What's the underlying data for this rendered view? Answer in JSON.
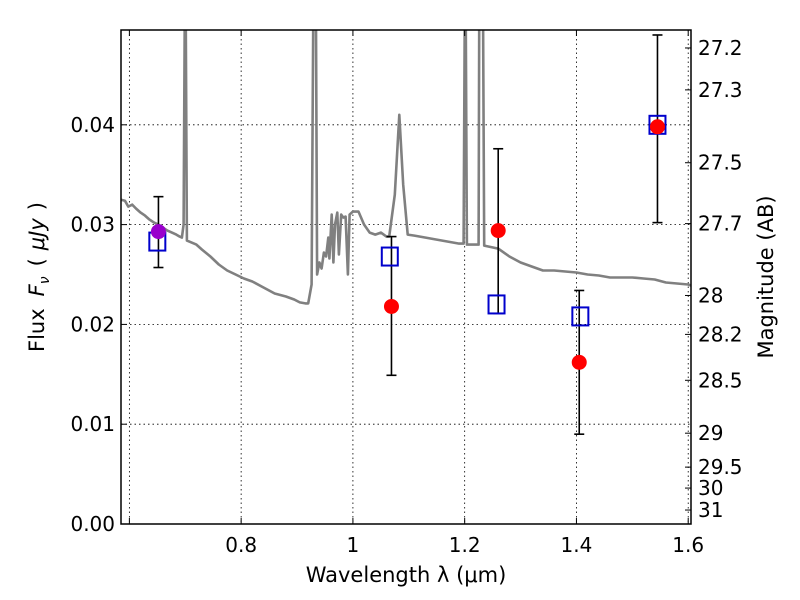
{
  "chart_data": {
    "type": "scatter",
    "title": "",
    "xlabel": "Wavelength  λ (μm)",
    "ylabel": "Flux  F_ν  ( μJy )",
    "ylabel_parts": {
      "main": "Flux",
      "symbol": "F",
      "sub": "ν",
      "unit_open": "(",
      "unit": "μJy",
      "unit_close": ")"
    },
    "y2label": "Magnitude (AB)",
    "xlim": [
      0.585,
      1.605
    ],
    "ylim": [
      0.0,
      0.0495
    ],
    "grid": true,
    "x_ticks": [
      0.6,
      0.8,
      1.0,
      1.2,
      1.4,
      1.6
    ],
    "x_tick_labels": [
      "",
      "0.8",
      "1",
      "1.2",
      "1.4",
      "1.6"
    ],
    "y_ticks": [
      0.0,
      0.01,
      0.02,
      0.03,
      0.04
    ],
    "y_tick_labels": [
      "0.00",
      "0.01",
      "0.02",
      "0.03",
      "0.04"
    ],
    "y2_ticks": [
      {
        "label": "27.2",
        "flux": 0.0477
      },
      {
        "label": "27.3",
        "flux": 0.0435
      },
      {
        "label": "27.5",
        "flux": 0.0362
      },
      {
        "label": "27.7",
        "flux": 0.0301
      },
      {
        "label": "28",
        "flux": 0.0229
      },
      {
        "label": "28.2",
        "flux": 0.019
      },
      {
        "label": "28.5",
        "flux": 0.0144
      },
      {
        "label": "29",
        "flux": 0.0091
      },
      {
        "label": "29.5",
        "flux": 0.0057
      },
      {
        "label": "30",
        "flux": 0.0036
      },
      {
        "label": "31",
        "flux": 0.0014
      }
    ],
    "model_sed": {
      "color": "#808080",
      "points": [
        [
          0.585,
          0.0325
        ],
        [
          0.592,
          0.0324
        ],
        [
          0.598,
          0.0318
        ],
        [
          0.605,
          0.032
        ],
        [
          0.612,
          0.0316
        ],
        [
          0.62,
          0.0312
        ],
        [
          0.628,
          0.0309
        ],
        [
          0.636,
          0.0305
        ],
        [
          0.644,
          0.0302
        ],
        [
          0.652,
          0.03
        ],
        [
          0.66,
          0.0297
        ],
        [
          0.668,
          0.0294
        ],
        [
          0.676,
          0.0292
        ],
        [
          0.684,
          0.029
        ],
        [
          0.69,
          0.0288
        ],
        [
          0.694,
          0.0287
        ],
        [
          0.697,
          0.03
        ],
        [
          0.699,
          0.05
        ],
        [
          0.701,
          0.05
        ],
        [
          0.703,
          0.0284
        ],
        [
          0.72,
          0.028
        ],
        [
          0.73,
          0.0275
        ],
        [
          0.745,
          0.0268
        ],
        [
          0.76,
          0.026
        ],
        [
          0.775,
          0.0254
        ],
        [
          0.79,
          0.025
        ],
        [
          0.805,
          0.0246
        ],
        [
          0.82,
          0.0243
        ],
        [
          0.84,
          0.0237
        ],
        [
          0.86,
          0.0231
        ],
        [
          0.88,
          0.0228
        ],
        [
          0.895,
          0.0225
        ],
        [
          0.905,
          0.0222
        ],
        [
          0.915,
          0.0221
        ],
        [
          0.92,
          0.0221
        ],
        [
          0.926,
          0.024
        ],
        [
          0.929,
          0.05
        ],
        [
          0.934,
          0.05
        ],
        [
          0.936,
          0.025
        ],
        [
          0.94,
          0.0262
        ],
        [
          0.944,
          0.0256
        ],
        [
          0.948,
          0.0272
        ],
        [
          0.952,
          0.0268
        ],
        [
          0.956,
          0.0287
        ],
        [
          0.958,
          0.0266
        ],
        [
          0.962,
          0.031
        ],
        [
          0.965,
          0.0262
        ],
        [
          0.968,
          0.03
        ],
        [
          0.972,
          0.0312
        ],
        [
          0.975,
          0.027
        ],
        [
          0.979,
          0.031
        ],
        [
          0.983,
          0.0307
        ],
        [
          0.987,
          0.0308
        ],
        [
          0.991,
          0.025
        ],
        [
          0.994,
          0.031
        ],
        [
          1.0,
          0.0313
        ],
        [
          1.01,
          0.0313
        ],
        [
          1.02,
          0.03
        ],
        [
          1.03,
          0.0292
        ],
        [
          1.04,
          0.029
        ],
        [
          1.05,
          0.0292
        ],
        [
          1.06,
          0.0288
        ],
        [
          1.065,
          0.0288
        ],
        [
          1.075,
          0.033
        ],
        [
          1.083,
          0.041
        ],
        [
          1.09,
          0.034
        ],
        [
          1.098,
          0.029
        ],
        [
          1.11,
          0.0289
        ],
        [
          1.13,
          0.0287
        ],
        [
          1.15,
          0.0285
        ],
        [
          1.17,
          0.0283
        ],
        [
          1.19,
          0.0281
        ],
        [
          1.198,
          0.0281
        ],
        [
          1.2,
          0.05
        ],
        [
          1.202,
          0.05
        ],
        [
          1.204,
          0.028
        ],
        [
          1.225,
          0.028
        ],
        [
          1.226,
          0.05
        ],
        [
          1.233,
          0.05
        ],
        [
          1.235,
          0.0279
        ],
        [
          1.26,
          0.0276
        ],
        [
          1.28,
          0.0268
        ],
        [
          1.3,
          0.0262
        ],
        [
          1.32,
          0.0258
        ],
        [
          1.34,
          0.0254
        ],
        [
          1.36,
          0.0254
        ],
        [
          1.38,
          0.0253
        ],
        [
          1.4,
          0.0252
        ],
        [
          1.42,
          0.025
        ],
        [
          1.44,
          0.0249
        ],
        [
          1.46,
          0.0247
        ],
        [
          1.48,
          0.0247
        ],
        [
          1.5,
          0.0247
        ],
        [
          1.52,
          0.0246
        ],
        [
          1.54,
          0.0245
        ],
        [
          1.56,
          0.0242
        ],
        [
          1.58,
          0.0241
        ],
        [
          1.6,
          0.024
        ],
        [
          1.605,
          0.0239
        ]
      ]
    },
    "series": [
      {
        "marker": "square-open",
        "color": "#0000cc",
        "points": [
          {
            "x": 0.65,
            "y": 0.0283
          },
          {
            "x": 1.066,
            "y": 0.0268
          },
          {
            "x": 1.257,
            "y": 0.022
          },
          {
            "x": 1.407,
            "y": 0.0208
          },
          {
            "x": 1.545,
            "y": 0.04
          }
        ]
      },
      {
        "marker": "circle-filled",
        "color": "#ff0000",
        "points": [
          {
            "x": 1.069,
            "y": 0.0218,
            "yerr_low": 0.0149,
            "yerr_high": 0.0288
          },
          {
            "x": 1.26,
            "y": 0.0294,
            "yerr_low": 0.0211,
            "yerr_high": 0.0376
          },
          {
            "x": 1.405,
            "y": 0.0162,
            "yerr_low": 0.009,
            "yerr_high": 0.0234
          },
          {
            "x": 1.545,
            "y": 0.0398,
            "yerr_low": 0.0302,
            "yerr_high": 0.049
          }
        ]
      },
      {
        "marker": "circle-filled",
        "color": "#9900cc",
        "points": [
          {
            "x": 0.652,
            "y": 0.0293,
            "yerr_low": 0.0257,
            "yerr_high": 0.0328
          }
        ]
      }
    ],
    "errorbar_color": "#000000"
  }
}
